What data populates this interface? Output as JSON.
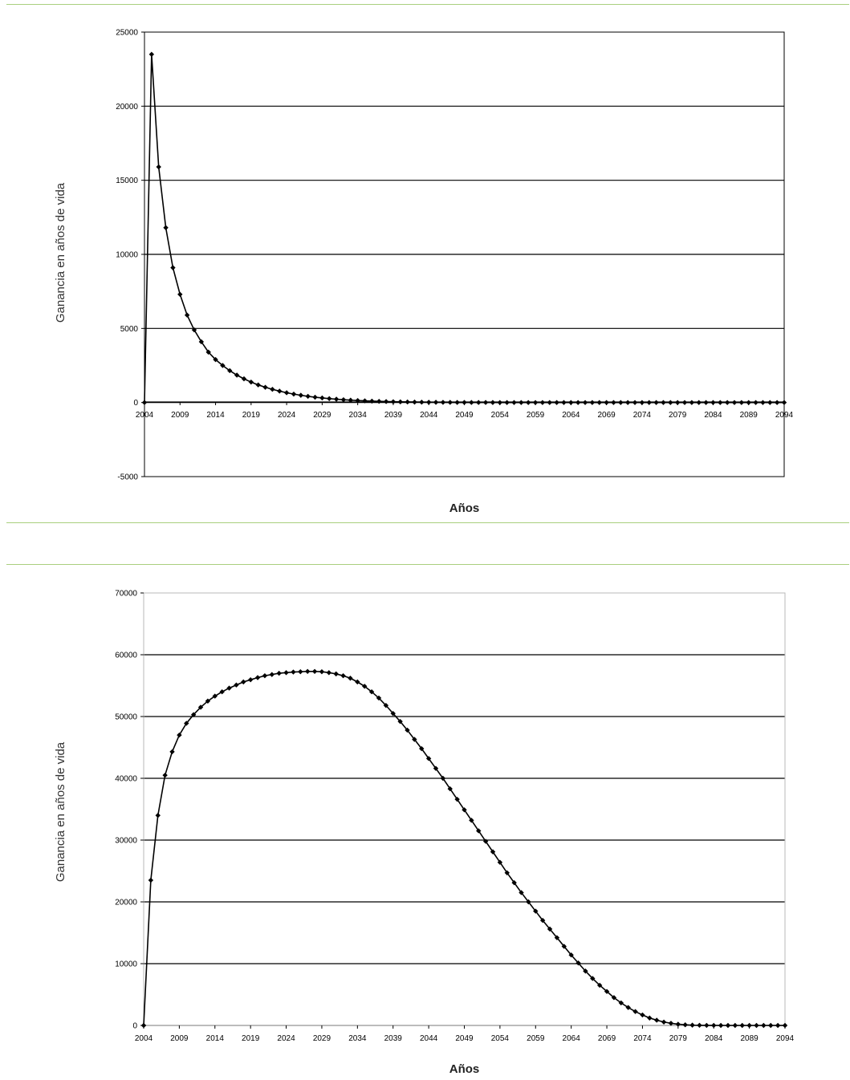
{
  "chart_data": [
    {
      "type": "line",
      "xlabel": "Años",
      "ylabel": "Ganancia en años de vida",
      "ylim": [
        -5000,
        25000
      ],
      "yticks": [
        -5000,
        0,
        5000,
        10000,
        15000,
        20000,
        25000
      ],
      "xlim": [
        2004,
        2094
      ],
      "xticks": [
        2004,
        2009,
        2014,
        2019,
        2024,
        2029,
        2034,
        2039,
        2044,
        2049,
        2054,
        2059,
        2064,
        2069,
        2074,
        2079,
        2084,
        2089,
        2094
      ],
      "grid": true,
      "series": [
        {
          "x": [
            2004,
            2005,
            2006,
            2007,
            2008,
            2009,
            2010,
            2011,
            2012,
            2013,
            2014,
            2015,
            2016,
            2017,
            2018,
            2019,
            2020,
            2021,
            2022,
            2023,
            2024,
            2025,
            2026,
            2027,
            2028,
            2029,
            2030,
            2031,
            2032,
            2033,
            2034,
            2035,
            2036,
            2037,
            2038,
            2039,
            2040,
            2041,
            2042,
            2043,
            2044,
            2045,
            2046,
            2047,
            2048,
            2049,
            2050,
            2051,
            2052,
            2053,
            2054,
            2055,
            2056,
            2057,
            2058,
            2059,
            2060,
            2061,
            2062,
            2063,
            2064,
            2065,
            2066,
            2067,
            2068,
            2069,
            2070,
            2071,
            2072,
            2073,
            2074,
            2075,
            2076,
            2077,
            2078,
            2079,
            2080,
            2081,
            2082,
            2083,
            2084,
            2085,
            2086,
            2087,
            2088,
            2089,
            2090,
            2091,
            2092,
            2093,
            2094
          ],
          "values": [
            0,
            23500,
            15900,
            11800,
            9100,
            7300,
            5900,
            4900,
            4100,
            3400,
            2900,
            2500,
            2150,
            1850,
            1600,
            1380,
            1190,
            1030,
            890,
            770,
            660,
            570,
            490,
            420,
            360,
            310,
            265,
            225,
            190,
            160,
            135,
            115,
            95,
            80,
            65,
            55,
            45,
            38,
            30,
            25,
            20,
            16,
            13,
            10,
            8,
            6,
            5,
            4,
            3,
            2,
            1,
            1,
            1,
            0,
            0,
            0,
            0,
            0,
            0,
            0,
            0,
            0,
            0,
            0,
            0,
            0,
            0,
            0,
            0,
            0,
            0,
            0,
            0,
            0,
            0,
            0,
            0,
            0,
            0,
            0,
            0,
            0,
            0,
            0,
            0,
            0,
            0,
            0,
            0,
            0,
            0
          ]
        }
      ]
    },
    {
      "type": "line",
      "xlabel": "Años",
      "ylabel": "Ganancia en años de vida",
      "ylim": [
        0,
        70000
      ],
      "yticks": [
        0,
        10000,
        20000,
        30000,
        40000,
        50000,
        60000,
        70000
      ],
      "xlim": [
        2004,
        2094
      ],
      "xticks": [
        2004,
        2009,
        2014,
        2019,
        2024,
        2029,
        2034,
        2039,
        2044,
        2049,
        2054,
        2059,
        2064,
        2069,
        2074,
        2079,
        2084,
        2089,
        2094
      ],
      "grid": true,
      "series": [
        {
          "x": [
            2004,
            2005,
            2006,
            2007,
            2008,
            2009,
            2010,
            2011,
            2012,
            2013,
            2014,
            2015,
            2016,
            2017,
            2018,
            2019,
            2020,
            2021,
            2022,
            2023,
            2024,
            2025,
            2026,
            2027,
            2028,
            2029,
            2030,
            2031,
            2032,
            2033,
            2034,
            2035,
            2036,
            2037,
            2038,
            2039,
            2040,
            2041,
            2042,
            2043,
            2044,
            2045,
            2046,
            2047,
            2048,
            2049,
            2050,
            2051,
            2052,
            2053,
            2054,
            2055,
            2056,
            2057,
            2058,
            2059,
            2060,
            2061,
            2062,
            2063,
            2064,
            2065,
            2066,
            2067,
            2068,
            2069,
            2070,
            2071,
            2072,
            2073,
            2074,
            2075,
            2076,
            2077,
            2078,
            2079,
            2080,
            2081,
            2082,
            2083,
            2084,
            2085,
            2086,
            2087,
            2088,
            2089,
            2090,
            2091,
            2092,
            2093,
            2094
          ],
          "values": [
            0,
            23500,
            34000,
            40500,
            44300,
            47000,
            48900,
            50300,
            51500,
            52500,
            53300,
            54000,
            54600,
            55100,
            55600,
            55950,
            56300,
            56600,
            56800,
            57000,
            57100,
            57200,
            57250,
            57300,
            57300,
            57250,
            57100,
            56900,
            56600,
            56200,
            55600,
            54900,
            54000,
            53000,
            51800,
            50500,
            49200,
            47800,
            46300,
            44800,
            43200,
            41600,
            40000,
            38300,
            36600,
            34900,
            33200,
            31500,
            29800,
            28100,
            26400,
            24700,
            23100,
            21500,
            20000,
            18500,
            17000,
            15600,
            14200,
            12800,
            11400,
            10100,
            8800,
            7600,
            6500,
            5500,
            4500,
            3650,
            2900,
            2250,
            1700,
            1200,
            850,
            550,
            350,
            200,
            100,
            50,
            25,
            10,
            5,
            0,
            0,
            0,
            0,
            0,
            0,
            0,
            0,
            0,
            0
          ]
        }
      ]
    }
  ]
}
